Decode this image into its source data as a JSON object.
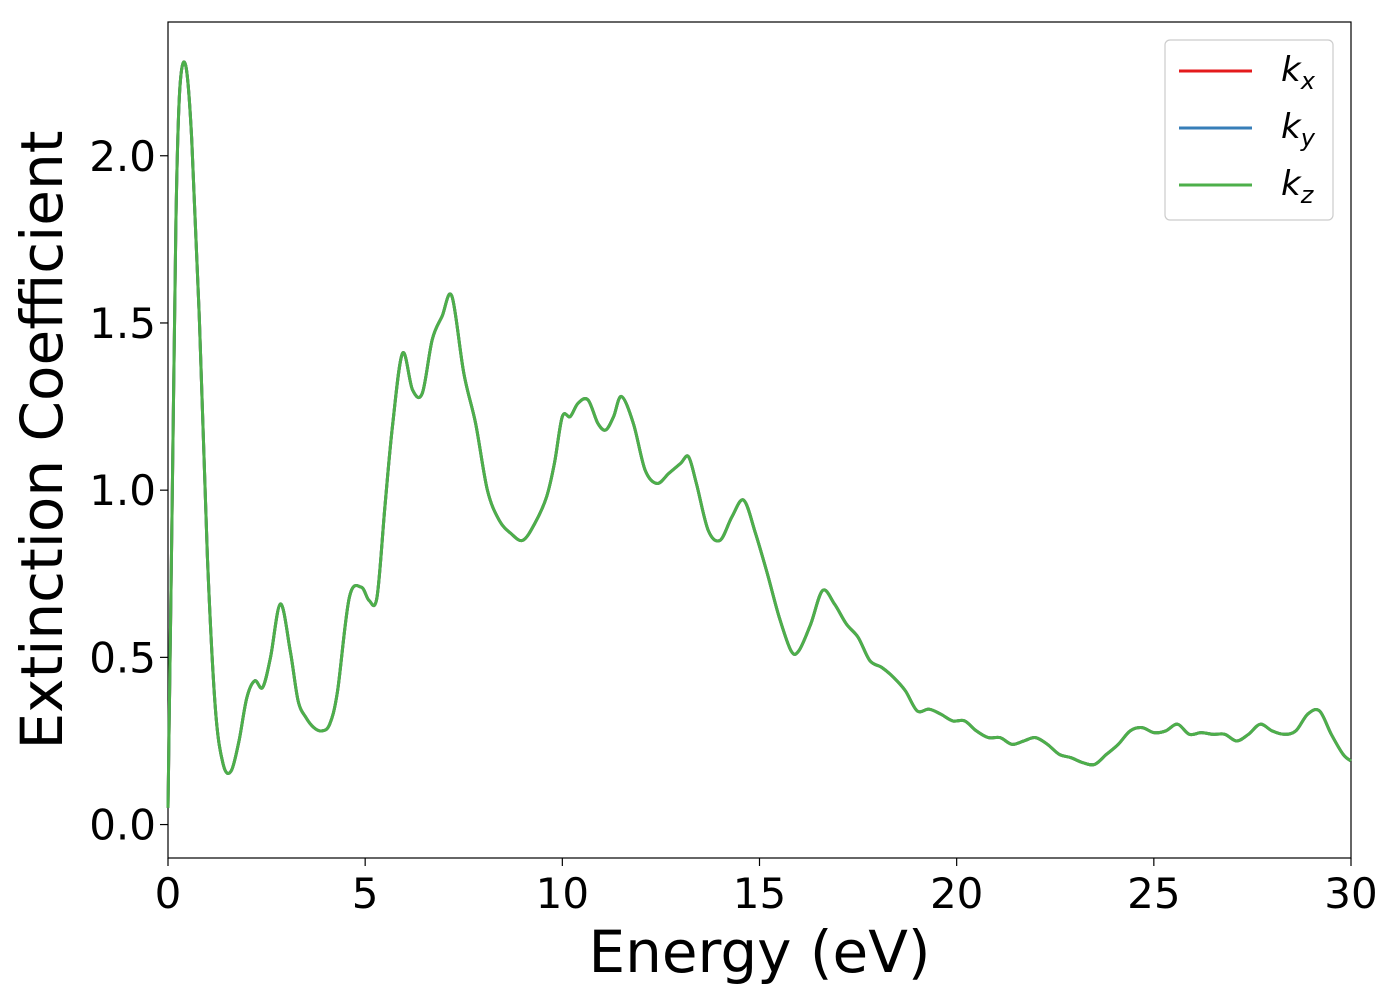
{
  "chart_data": {
    "type": "line",
    "xlabel": "Energy (eV)",
    "ylabel": "Extinction Coefficient",
    "xlim": [
      0,
      30
    ],
    "ylim": [
      -0.1,
      2.4
    ],
    "xticks": [
      0,
      5,
      10,
      15,
      20,
      25,
      30
    ],
    "xtick_labels": [
      "0",
      "5",
      "10",
      "15",
      "20",
      "25",
      "30"
    ],
    "yticks": [
      0.0,
      0.5,
      1.0,
      1.5,
      2.0
    ],
    "ytick_labels": [
      "0.0",
      "0.5",
      "1.0",
      "1.5",
      "2.0"
    ],
    "grid": false,
    "legend_position": "top-right",
    "x": [
      0,
      0.1,
      0.2,
      0.3,
      0.45,
      0.6,
      0.8,
      1.0,
      1.2,
      1.4,
      1.6,
      1.8,
      2.0,
      2.2,
      2.4,
      2.6,
      2.85,
      3.1,
      3.3,
      3.5,
      3.7,
      3.9,
      4.1,
      4.3,
      4.6,
      4.9,
      5.1,
      5.3,
      5.5,
      5.7,
      5.95,
      6.2,
      6.45,
      6.7,
      6.95,
      7.2,
      7.5,
      7.8,
      8.1,
      8.4,
      8.7,
      9.0,
      9.3,
      9.6,
      9.8,
      10.0,
      10.2,
      10.4,
      10.65,
      10.9,
      11.1,
      11.3,
      11.5,
      11.8,
      12.1,
      12.4,
      12.7,
      13.0,
      13.2,
      13.4,
      13.7,
      14.0,
      14.3,
      14.6,
      14.9,
      15.2,
      15.5,
      15.8,
      16.0,
      16.3,
      16.6,
      16.9,
      17.2,
      17.5,
      17.8,
      18.1,
      18.4,
      18.7,
      19.0,
      19.3,
      19.6,
      19.9,
      20.2,
      20.5,
      20.8,
      21.1,
      21.4,
      21.7,
      22.0,
      22.3,
      22.6,
      22.9,
      23.2,
      23.5,
      23.8,
      24.1,
      24.4,
      24.7,
      25.0,
      25.3,
      25.6,
      25.9,
      26.2,
      26.5,
      26.8,
      27.1,
      27.4,
      27.7,
      28.0,
      28.3,
      28.6,
      28.9,
      29.2,
      29.5,
      29.8,
      30.0
    ],
    "series": [
      {
        "name": "k_x",
        "label_base": "k",
        "label_sub": "x",
        "color": "#e41a1c"
      },
      {
        "name": "k_y",
        "label_base": "k",
        "label_sub": "y",
        "color": "#377eb8"
      },
      {
        "name": "k_z",
        "label_base": "k",
        "label_sub": "z",
        "color": "#4daf4a"
      }
    ],
    "values": [
      0.05,
      0.9,
      1.8,
      2.2,
      2.27,
      2.05,
      1.5,
      0.8,
      0.35,
      0.18,
      0.16,
      0.25,
      0.38,
      0.43,
      0.41,
      0.5,
      0.66,
      0.52,
      0.37,
      0.32,
      0.29,
      0.28,
      0.3,
      0.4,
      0.68,
      0.71,
      0.67,
      0.68,
      0.95,
      1.2,
      1.41,
      1.3,
      1.29,
      1.45,
      1.52,
      1.58,
      1.35,
      1.2,
      1.0,
      0.91,
      0.87,
      0.85,
      0.9,
      0.98,
      1.08,
      1.22,
      1.22,
      1.26,
      1.27,
      1.2,
      1.18,
      1.22,
      1.28,
      1.2,
      1.06,
      1.02,
      1.05,
      1.08,
      1.1,
      1.02,
      0.88,
      0.85,
      0.92,
      0.97,
      0.87,
      0.75,
      0.62,
      0.52,
      0.52,
      0.6,
      0.7,
      0.66,
      0.6,
      0.56,
      0.49,
      0.47,
      0.44,
      0.4,
      0.34,
      0.345,
      0.33,
      0.31,
      0.31,
      0.28,
      0.26,
      0.26,
      0.24,
      0.25,
      0.26,
      0.24,
      0.21,
      0.2,
      0.185,
      0.18,
      0.21,
      0.24,
      0.28,
      0.29,
      0.275,
      0.28,
      0.3,
      0.27,
      0.275,
      0.27,
      0.27,
      0.25,
      0.27,
      0.3,
      0.28,
      0.27,
      0.28,
      0.33,
      0.34,
      0.27,
      0.21,
      0.19
    ]
  }
}
